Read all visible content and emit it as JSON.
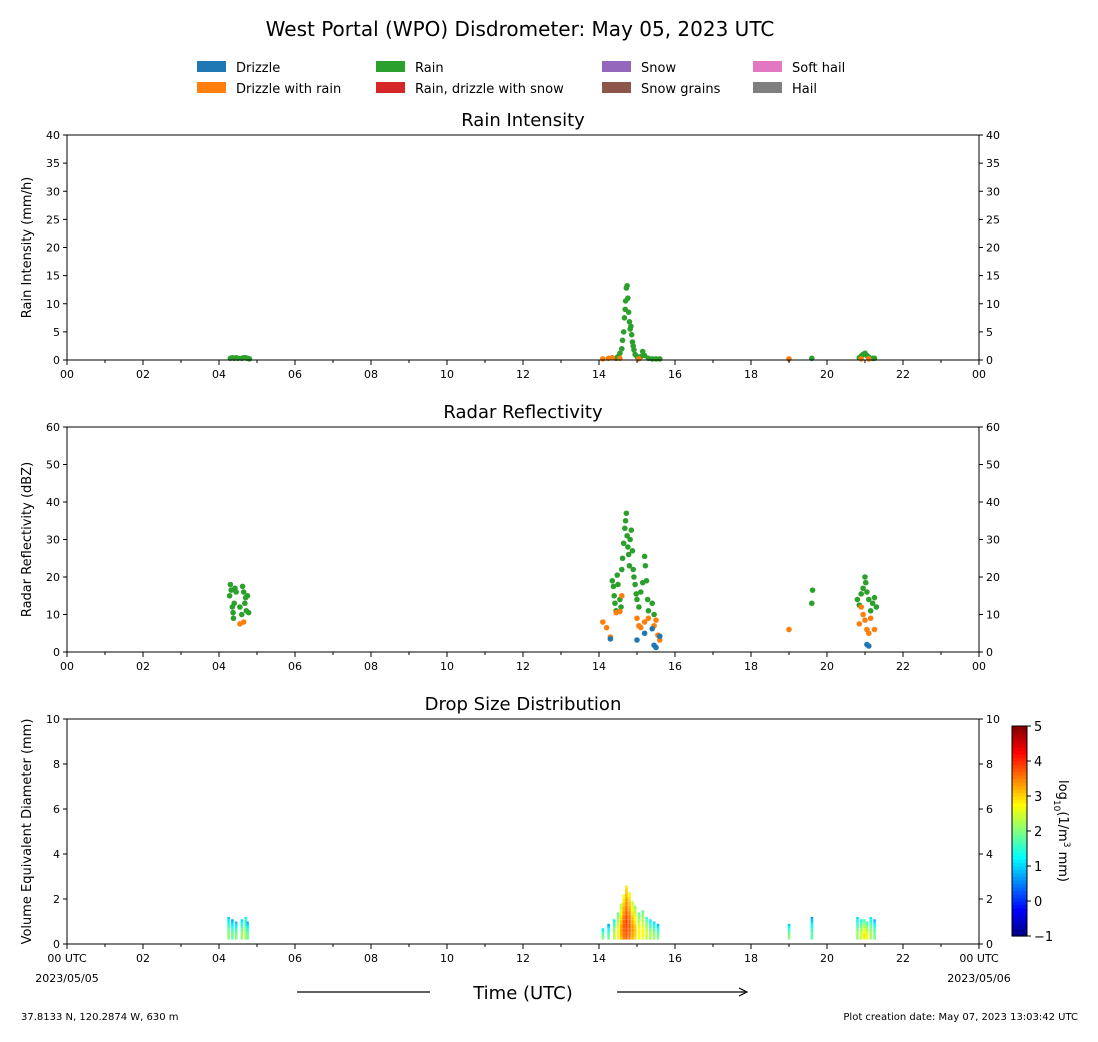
{
  "figure": {
    "title": "West Portal (WPO) Disdrometer: May 05, 2023 UTC",
    "location": "37.8133 N, 120.2874 W, 630 m",
    "creation_date": "Plot creation date: May 07, 2023 13:03:42 UTC",
    "xlabel": "Time (UTC)"
  },
  "legend": {
    "items": [
      {
        "label": "Drizzle",
        "color": "#1f77b4"
      },
      {
        "label": "Drizzle with rain",
        "color": "#ff7f0e"
      },
      {
        "label": "Rain",
        "color": "#2ca02c"
      },
      {
        "label": "Rain, drizzle with snow",
        "color": "#d62728"
      },
      {
        "label": "Snow",
        "color": "#9467bd"
      },
      {
        "label": "Snow grains",
        "color": "#8c564b"
      },
      {
        "label": "Soft hail",
        "color": "#e377c2"
      },
      {
        "label": "Hail",
        "color": "#7f7f7f"
      }
    ]
  },
  "chart_data": [
    {
      "type": "scatter",
      "title": "Rain Intensity",
      "ylabel": "Rain Intensity (mm/h)",
      "xlim": [
        0,
        24
      ],
      "ylim": [
        0,
        40
      ],
      "yticks": [
        0,
        5,
        10,
        15,
        20,
        25,
        30,
        35,
        40
      ],
      "xtick_labels": [
        "00",
        "02",
        "04",
        "06",
        "08",
        "10",
        "12",
        "14",
        "16",
        "18",
        "20",
        "22",
        "00"
      ],
      "grid": false,
      "series": [
        {
          "name": "Rain",
          "color": "#2ca02c",
          "points": [
            [
              4.3,
              0.3
            ],
            [
              4.35,
              0.4
            ],
            [
              4.4,
              0.3
            ],
            [
              4.45,
              0.4
            ],
            [
              4.5,
              0.3
            ],
            [
              4.6,
              0.3
            ],
            [
              4.65,
              0.4
            ],
            [
              4.7,
              0.4
            ],
            [
              4.75,
              0.3
            ],
            [
              4.8,
              0.2
            ],
            [
              14.45,
              0.3
            ],
            [
              14.5,
              0.6
            ],
            [
              14.55,
              1.2
            ],
            [
              14.6,
              2.0
            ],
            [
              14.62,
              3.5
            ],
            [
              14.65,
              5.0
            ],
            [
              14.67,
              7.5
            ],
            [
              14.69,
              9.0
            ],
            [
              14.7,
              10.5
            ],
            [
              14.72,
              12.8
            ],
            [
              14.74,
              13.2
            ],
            [
              14.76,
              11.0
            ],
            [
              14.78,
              8.5
            ],
            [
              14.8,
              6.8
            ],
            [
              14.82,
              5.5
            ],
            [
              14.84,
              6.0
            ],
            [
              14.86,
              4.5
            ],
            [
              14.88,
              3.2
            ],
            [
              14.9,
              2.5
            ],
            [
              14.92,
              1.8
            ],
            [
              14.95,
              1.0
            ],
            [
              15.0,
              0.6
            ],
            [
              15.05,
              0.4
            ],
            [
              15.1,
              0.6
            ],
            [
              15.15,
              1.5
            ],
            [
              15.2,
              0.8
            ],
            [
              15.3,
              0.3
            ],
            [
              15.4,
              0.2
            ],
            [
              15.5,
              0.2
            ],
            [
              15.6,
              0.2
            ],
            [
              19.6,
              0.3
            ],
            [
              20.85,
              0.4
            ],
            [
              20.9,
              0.7
            ],
            [
              20.95,
              1.0
            ],
            [
              21.0,
              1.2
            ],
            [
              21.05,
              0.8
            ],
            [
              21.1,
              0.5
            ],
            [
              21.2,
              0.3
            ],
            [
              21.25,
              0.3
            ]
          ]
        },
        {
          "name": "Drizzle with rain",
          "color": "#ff7f0e",
          "points": [
            [
              14.1,
              0.2
            ],
            [
              14.25,
              0.3
            ],
            [
              14.35,
              0.4
            ],
            [
              14.55,
              0.3
            ],
            [
              15.05,
              0.2
            ],
            [
              19.0,
              0.2
            ],
            [
              20.9,
              0.2
            ],
            [
              21.1,
              0.2
            ]
          ]
        }
      ]
    },
    {
      "type": "scatter",
      "title": "Radar Reflectivity",
      "ylabel": "Radar Reflectivity (dBZ)",
      "xlim": [
        0,
        24
      ],
      "ylim": [
        0,
        60
      ],
      "yticks": [
        0,
        10,
        20,
        30,
        40,
        50,
        60
      ],
      "xtick_labels": [
        "00",
        "02",
        "04",
        "06",
        "08",
        "10",
        "12",
        "14",
        "16",
        "18",
        "20",
        "22",
        "00"
      ],
      "grid": false,
      "series": [
        {
          "name": "Rain",
          "color": "#2ca02c",
          "points": [
            [
              4.28,
              15
            ],
            [
              4.3,
              18
            ],
            [
              4.32,
              16.5
            ],
            [
              4.35,
              12
            ],
            [
              4.37,
              10.5
            ],
            [
              4.38,
              9
            ],
            [
              4.4,
              13
            ],
            [
              4.42,
              17
            ],
            [
              4.45,
              16
            ],
            [
              4.55,
              12
            ],
            [
              4.6,
              10
            ],
            [
              4.62,
              17.5
            ],
            [
              4.65,
              16
            ],
            [
              4.68,
              13
            ],
            [
              4.7,
              14.5
            ],
            [
              4.72,
              11
            ],
            [
              4.75,
              15
            ],
            [
              4.78,
              10.5
            ],
            [
              14.35,
              19
            ],
            [
              14.38,
              17.5
            ],
            [
              14.4,
              15
            ],
            [
              14.42,
              13
            ],
            [
              14.45,
              11
            ],
            [
              14.48,
              20.5
            ],
            [
              14.5,
              18
            ],
            [
              14.55,
              14
            ],
            [
              14.58,
              12
            ],
            [
              14.6,
              22
            ],
            [
              14.62,
              25
            ],
            [
              14.65,
              29
            ],
            [
              14.68,
              33
            ],
            [
              14.7,
              35
            ],
            [
              14.72,
              37
            ],
            [
              14.74,
              31
            ],
            [
              14.76,
              28
            ],
            [
              14.78,
              26
            ],
            [
              14.8,
              23
            ],
            [
              14.82,
              30
            ],
            [
              14.85,
              32.5
            ],
            [
              14.88,
              27
            ],
            [
              14.9,
              22
            ],
            [
              14.92,
              20
            ],
            [
              14.95,
              18
            ],
            [
              14.98,
              15.5
            ],
            [
              15.0,
              14
            ],
            [
              15.05,
              12
            ],
            [
              15.1,
              16
            ],
            [
              15.15,
              18.5
            ],
            [
              15.2,
              25.5
            ],
            [
              15.22,
              23
            ],
            [
              15.25,
              19
            ],
            [
              15.28,
              14
            ],
            [
              15.3,
              11
            ],
            [
              15.4,
              13
            ],
            [
              15.45,
              10
            ],
            [
              19.6,
              13
            ],
            [
              19.62,
              16.5
            ],
            [
              20.8,
              14
            ],
            [
              20.85,
              12.5
            ],
            [
              20.9,
              15.5
            ],
            [
              20.95,
              17
            ],
            [
              21.0,
              20
            ],
            [
              21.02,
              18.5
            ],
            [
              21.05,
              16
            ],
            [
              21.1,
              14
            ],
            [
              21.15,
              11
            ],
            [
              21.2,
              13
            ],
            [
              21.25,
              14.5
            ],
            [
              21.3,
              12
            ]
          ]
        },
        {
          "name": "Drizzle with rain",
          "color": "#ff7f0e",
          "points": [
            [
              4.55,
              7.5
            ],
            [
              4.65,
              8
            ],
            [
              14.1,
              8
            ],
            [
              14.2,
              6.5
            ],
            [
              14.3,
              4
            ],
            [
              14.45,
              10.5
            ],
            [
              14.55,
              10.8
            ],
            [
              14.6,
              15
            ],
            [
              15.0,
              9
            ],
            [
              15.05,
              7
            ],
            [
              15.1,
              6.5
            ],
            [
              15.2,
              8
            ],
            [
              15.3,
              9
            ],
            [
              15.45,
              7
            ],
            [
              15.5,
              8.5
            ],
            [
              15.55,
              4.5
            ],
            [
              15.6,
              3.2
            ],
            [
              19.0,
              6
            ],
            [
              20.85,
              7.5
            ],
            [
              20.9,
              12
            ],
            [
              20.95,
              10
            ],
            [
              21.0,
              8.5
            ],
            [
              21.05,
              6
            ],
            [
              21.1,
              5
            ],
            [
              21.15,
              9
            ],
            [
              21.25,
              6
            ]
          ]
        },
        {
          "name": "Drizzle",
          "color": "#1f77b4",
          "points": [
            [
              14.3,
              3.5
            ],
            [
              15.0,
              3.2
            ],
            [
              15.2,
              5
            ],
            [
              15.4,
              6.2
            ],
            [
              15.45,
              1.8
            ],
            [
              15.5,
              1.2
            ],
            [
              15.6,
              4.2
            ],
            [
              21.05,
              2
            ],
            [
              21.1,
              1.6
            ]
          ]
        }
      ]
    },
    {
      "type": "heatmap",
      "title": "Drop Size Distribution",
      "ylabel": "Volume Equivalent Diameter (mm)",
      "colorbar_label": "log10(1/m3 mm)",
      "colorbar_ticks": [
        -1,
        0,
        1,
        2,
        3,
        4,
        5
      ],
      "colorbar_range": [
        -1,
        5
      ],
      "colormap": "jet",
      "xlim": [
        0,
        24
      ],
      "ylim": [
        0,
        10
      ],
      "yticks": [
        0,
        2,
        4,
        6,
        8,
        10
      ],
      "xtick_labels": [
        "00 UTC",
        "02",
        "04",
        "06",
        "08",
        "10",
        "12",
        "14",
        "16",
        "18",
        "20",
        "22",
        "00 UTC"
      ],
      "x_start_date": "2023/05/05",
      "x_end_date": "2023/05/06",
      "columns": [
        {
          "t": 4.25,
          "dmax": 1.1,
          "peak": 2.2
        },
        {
          "t": 4.35,
          "dmax": 1.0,
          "peak": 2.0
        },
        {
          "t": 4.45,
          "dmax": 0.9,
          "peak": 2.1
        },
        {
          "t": 4.6,
          "dmax": 1.0,
          "peak": 2.3
        },
        {
          "t": 4.7,
          "dmax": 1.2,
          "peak": 2.4
        },
        {
          "t": 4.75,
          "dmax": 0.9,
          "peak": 2.0
        },
        {
          "t": 14.1,
          "dmax": 0.7,
          "peak": 2.1
        },
        {
          "t": 14.25,
          "dmax": 0.8,
          "peak": 2.0
        },
        {
          "t": 14.4,
          "dmax": 1.0,
          "peak": 2.5
        },
        {
          "t": 14.5,
          "dmax": 1.4,
          "peak": 2.9
        },
        {
          "t": 14.58,
          "dmax": 1.8,
          "peak": 3.4
        },
        {
          "t": 14.65,
          "dmax": 2.2,
          "peak": 3.8
        },
        {
          "t": 14.72,
          "dmax": 2.6,
          "peak": 4.0
        },
        {
          "t": 14.8,
          "dmax": 2.3,
          "peak": 3.8
        },
        {
          "t": 14.88,
          "dmax": 1.9,
          "peak": 3.5
        },
        {
          "t": 14.95,
          "dmax": 1.7,
          "peak": 3.2
        },
        {
          "t": 15.05,
          "dmax": 1.4,
          "peak": 2.9
        },
        {
          "t": 15.15,
          "dmax": 1.5,
          "peak": 2.9
        },
        {
          "t": 15.25,
          "dmax": 1.2,
          "peak": 2.6
        },
        {
          "t": 15.35,
          "dmax": 1.0,
          "peak": 2.4
        },
        {
          "t": 15.45,
          "dmax": 0.9,
          "peak": 2.3
        },
        {
          "t": 15.55,
          "dmax": 0.8,
          "peak": 2.1
        },
        {
          "t": 19.0,
          "dmax": 0.8,
          "peak": 2.2
        },
        {
          "t": 19.6,
          "dmax": 1.1,
          "peak": 1.9
        },
        {
          "t": 20.8,
          "dmax": 1.1,
          "peak": 2.3
        },
        {
          "t": 20.9,
          "dmax": 1.0,
          "peak": 2.6
        },
        {
          "t": 20.98,
          "dmax": 1.0,
          "peak": 3.0
        },
        {
          "t": 21.05,
          "dmax": 0.9,
          "peak": 2.8
        },
        {
          "t": 21.15,
          "dmax": 1.1,
          "peak": 2.4
        },
        {
          "t": 21.25,
          "dmax": 1.0,
          "peak": 2.1
        }
      ]
    }
  ]
}
